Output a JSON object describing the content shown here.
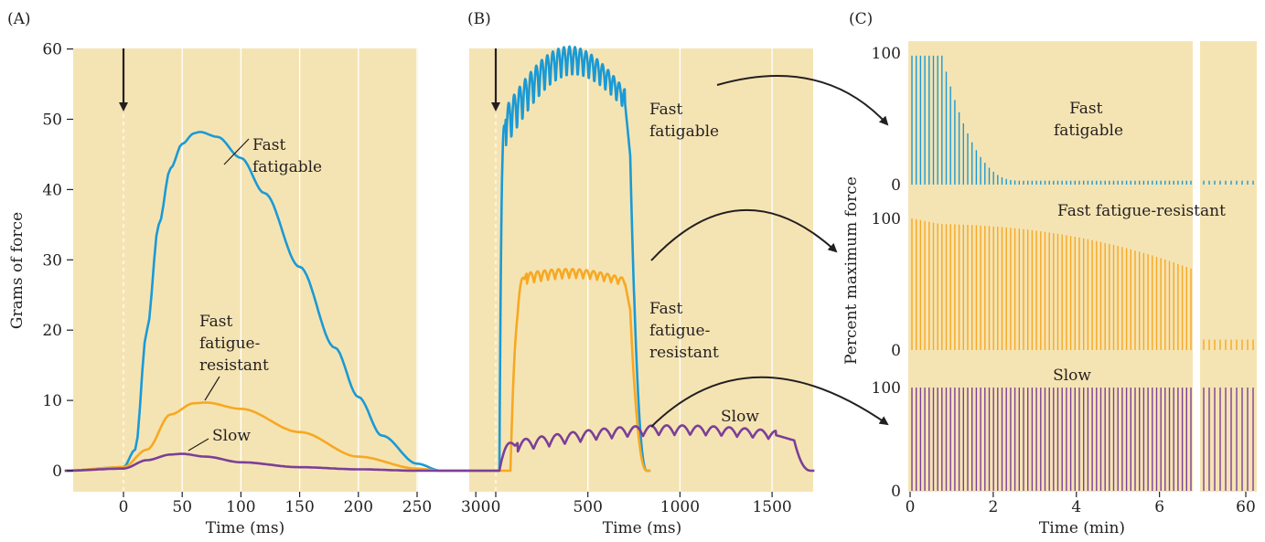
{
  "colors": {
    "background": "#f5e4b3",
    "fast_fatigable": "#1a9ad6",
    "fast_fatigue_resistant": "#f7a823",
    "slow": "#7b3f98",
    "gridline": "#ffffff",
    "text": "#231f20"
  },
  "chart_data": [
    {
      "panel": "(A)",
      "type": "line",
      "xlabel": "Time (ms)",
      "ylabel": "Grams of force",
      "xlim": [
        -50,
        300
      ],
      "ylim": [
        -3,
        60
      ],
      "xticks": [
        "0",
        "50",
        "100",
        "150",
        "200",
        "250",
        "300"
      ],
      "yticks": [
        "0",
        "10",
        "20",
        "30",
        "40",
        "50",
        "60"
      ],
      "grid": "vertical",
      "stimulus_marker_x": 0,
      "series": [
        {
          "name": "Fast fatigable",
          "x": [
            -50,
            0,
            10,
            20,
            30,
            40,
            50,
            60,
            65,
            80,
            100,
            120,
            150,
            180,
            200,
            220,
            250,
            270,
            300
          ],
          "y": [
            0,
            0.5,
            3,
            20,
            35,
            43,
            46.5,
            48,
            48.2,
            47.5,
            44.5,
            39.5,
            29,
            17.5,
            10.5,
            5,
            1,
            0,
            0
          ]
        },
        {
          "name": "Fast fatigue-resistant",
          "x": [
            -50,
            0,
            20,
            40,
            60,
            70,
            100,
            150,
            200,
            250,
            270,
            300
          ],
          "y": [
            0,
            0.5,
            3,
            8,
            9.6,
            9.7,
            8.8,
            5.5,
            2,
            0.3,
            0,
            0
          ]
        },
        {
          "name": "Slow",
          "x": [
            -50,
            0,
            20,
            40,
            50,
            70,
            100,
            150,
            200,
            250,
            300
          ],
          "y": [
            0,
            0.3,
            1.5,
            2.3,
            2.4,
            2,
            1.2,
            0.5,
            0.2,
            0,
            0
          ]
        }
      ],
      "annotations": [
        {
          "text": [
            "Fast",
            "fatigable"
          ]
        },
        {
          "text": [
            "Fast",
            "fatigue-",
            "resistant"
          ]
        },
        {
          "text": [
            "Slow"
          ]
        }
      ]
    },
    {
      "panel": "(B)",
      "type": "line",
      "xlabel": "Time (ms)",
      "xlim": [
        -150,
        1750
      ],
      "xticks": [
        "0",
        "500",
        "1000",
        "1500"
      ],
      "grid": "vertical",
      "stimulus_marker_x": 0,
      "series": [
        {
          "name": "Fast fatigable",
          "onset": 20,
          "offset": 730,
          "plateau_start": 55,
          "plateau_end": 700,
          "level_start": 48,
          "level_end": 52,
          "peak_mid": 56,
          "ripple_period": 30,
          "ripple_amp_start": 6,
          "ripple_amp_end": 3
        },
        {
          "name": "Fast fatigue-resistant",
          "onset": 80,
          "offset": 730,
          "plateau_start": 170,
          "plateau_end": 700,
          "level_start": 27,
          "level_end": 26.5,
          "peak_mid": 28,
          "ripple_period": 38,
          "ripple_amp_start": 1.5,
          "ripple_amp_end": 1
        },
        {
          "name": "Slow",
          "onset": 20,
          "offset": 1620,
          "plateau_start": 120,
          "plateau_end": 1520,
          "level_start": 3.5,
          "level_end": 5,
          "peak_mid": 5,
          "ripple_period": 85,
          "ripple_amp_start": 1.6,
          "ripple_amp_end": 1.2
        }
      ],
      "annotations": [
        {
          "text": [
            "Fast",
            "fatigable"
          ]
        },
        {
          "text": [
            "Fast",
            "fatigue-",
            "resistant"
          ]
        },
        {
          "text": [
            "Slow"
          ]
        }
      ]
    },
    {
      "panel": "(C)",
      "type": "bar",
      "xlabel": "Time (min)",
      "ylabel": "Percent maximum force",
      "xlim": [
        0,
        62
      ],
      "xticks": [
        "0",
        "2",
        "4",
        "6",
        "60"
      ],
      "break_after_minute": 6.8,
      "bar_count_before_break": 66,
      "bar_count_after_break": 10,
      "subplots": [
        {
          "name": "Fast fatigable",
          "ylim": [
            0,
            100
          ],
          "yticks": [
            "0",
            "100"
          ],
          "start": 98,
          "end": 3,
          "final": 3
        },
        {
          "name": "Fast fatigue-resistant",
          "ylim": [
            0,
            100
          ],
          "yticks": [
            "0",
            "100"
          ],
          "start": 100,
          "end": 66,
          "final": 8
        },
        {
          "name": "Slow",
          "ylim": [
            0,
            100
          ],
          "yticks": [
            "0",
            "100"
          ],
          "start": 100,
          "end": 100,
          "final": 100
        }
      ],
      "annotations": [
        {
          "text": [
            "Fast",
            "fatigable"
          ]
        },
        {
          "text": [
            "Fast fatigue-resistant"
          ]
        },
        {
          "text": [
            "Slow"
          ]
        }
      ]
    }
  ]
}
